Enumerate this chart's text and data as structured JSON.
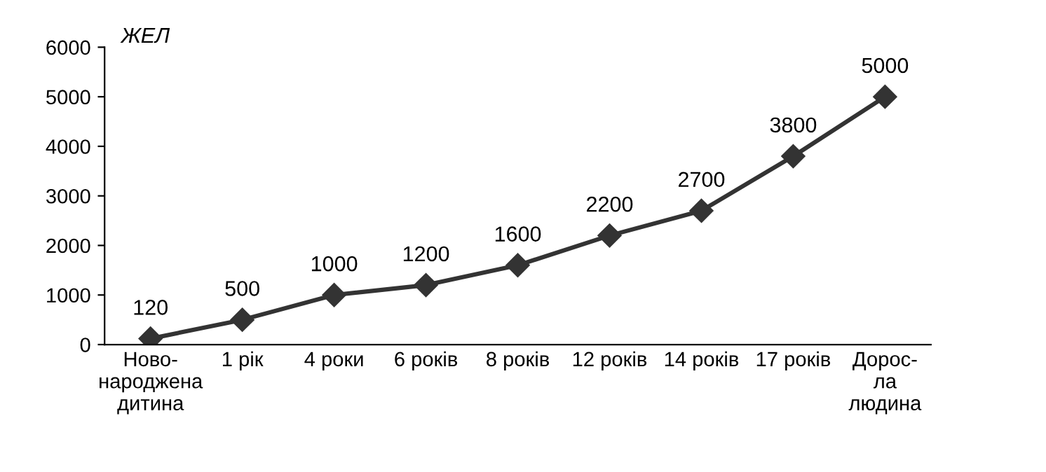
{
  "chart_data": {
    "type": "line",
    "ylabel": "ЖЕЛ",
    "categories": [
      "Ново-\nнароджена\nдитина",
      "1 рік",
      "4 роки",
      "6 років",
      "8 років",
      "12 років",
      "14 років",
      "17 років",
      "Дорос-\nла\nлюдина"
    ],
    "values": [
      120,
      500,
      1000,
      1200,
      1600,
      2200,
      2700,
      3800,
      5000
    ],
    "color": "#333333",
    "marker": "diamond",
    "line_style": "solid",
    "data_labels": true,
    "grid": false,
    "legend": false,
    "ylim": [
      0,
      6000
    ],
    "yticks": [
      0,
      1000,
      2000,
      3000,
      4000,
      5000,
      6000
    ]
  }
}
